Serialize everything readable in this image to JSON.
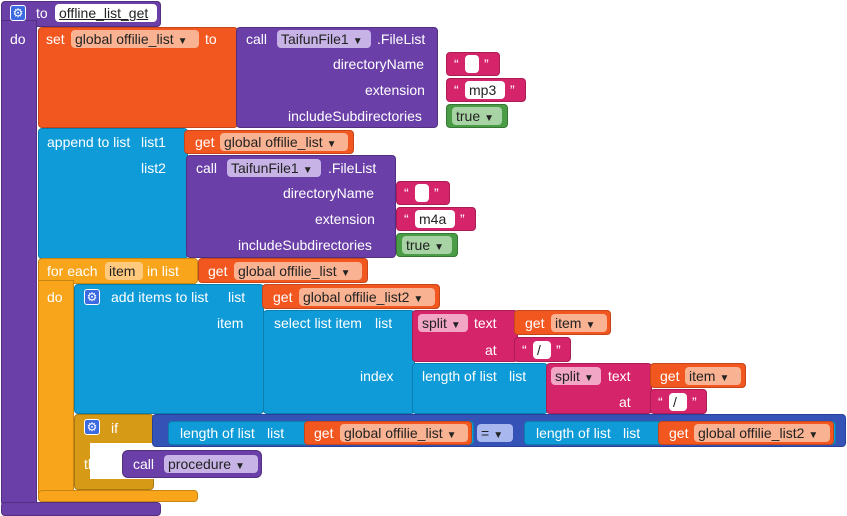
{
  "procedure": {
    "to_label": "to",
    "name": "offline_list_get",
    "do_label": "do"
  },
  "set_block": {
    "set_label": "set",
    "variable": "global offilie_list",
    "to_label": "to"
  },
  "filelist1": {
    "call_label": "call",
    "component": "TaifunFile1",
    "method": ".FileList",
    "directory_label": "directoryName",
    "directory_value": "",
    "extension_label": "extension",
    "extension_value": "mp3",
    "subdir_label": "includeSubdirectories",
    "subdir_value": "true"
  },
  "append_block": {
    "label": "append to list",
    "list1_label": "list1",
    "list1_get": "get",
    "list1_var": "global offilie_list",
    "list2_label": "list2"
  },
  "filelist2": {
    "call_label": "call",
    "component": "TaifunFile1",
    "method": ".FileList",
    "directory_label": "directoryName",
    "directory_value": "",
    "extension_label": "extension",
    "extension_value": "m4a",
    "subdir_label": "includeSubdirectories",
    "subdir_value": "true"
  },
  "foreach_block": {
    "for_each_label": "for each",
    "item_var": "item",
    "in_list_label": "in list",
    "get_label": "get",
    "list_var": "global offilie_list",
    "do_label": "do"
  },
  "add_items": {
    "label": "add items to list",
    "list_label": "list",
    "get_label": "get",
    "list_var": "global offilie_list2",
    "item_label": "item",
    "select_label": "select list item",
    "select_list_label": "list",
    "split_label": "split",
    "text_label": "text",
    "text_get": "get",
    "text_var": "item",
    "at_label": "at",
    "at_value": "/",
    "index_label": "index",
    "length_label": "length of list",
    "length_list_label": "list",
    "split2_label": "split",
    "text2_label": "text",
    "text2_get": "get",
    "text2_var": "item",
    "at2_label": "at",
    "at2_value": "/"
  },
  "if_block": {
    "if_label": "if",
    "len1_label": "length of list",
    "len1_list": "list",
    "len1_get": "get",
    "len1_var": "global offilie_list",
    "op": "=",
    "len2_label": "length of list",
    "len2_list": "list",
    "len2_get": "get",
    "len2_var": "global offilie_list2",
    "then_label": "then",
    "call_label": "call",
    "call_proc": "procedure"
  },
  "colors": {
    "procedure": "#6b3fa8",
    "variable_set": "#f2571f",
    "list": "#0f9bd7",
    "text": "#d6246b",
    "logic": "#4a9d46",
    "control": "#f8a51b"
  }
}
